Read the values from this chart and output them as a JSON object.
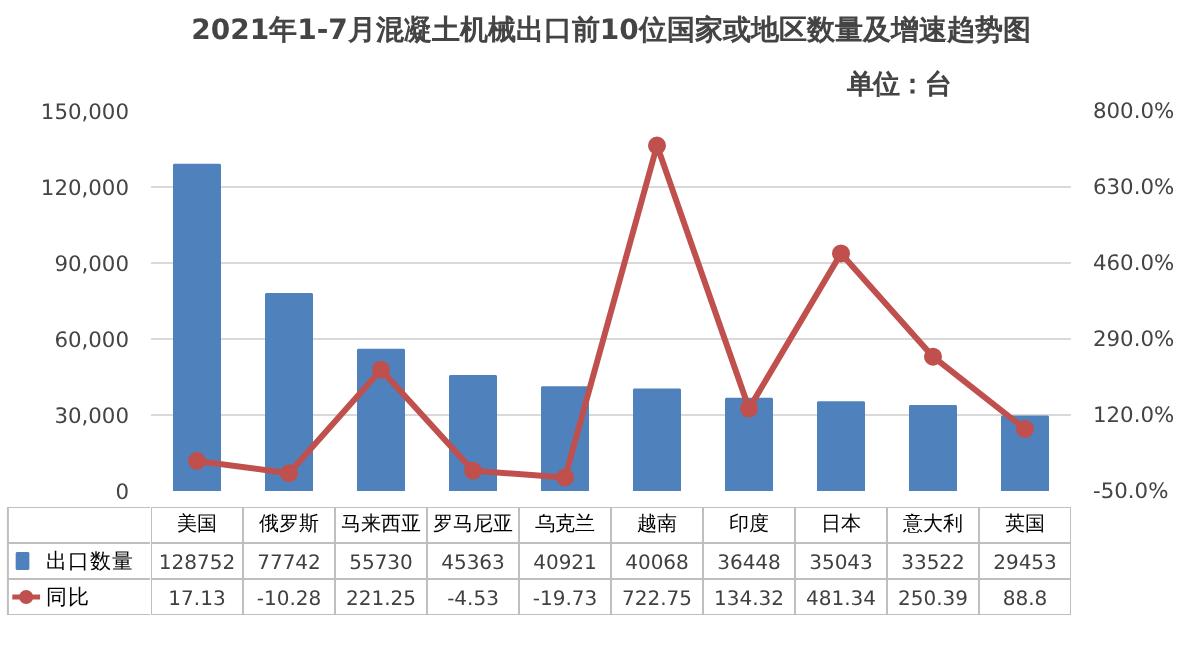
{
  "chart_data": {
    "type": "bar",
    "title": "2021年1-7月混凝土机械出口前10位国家或地区数量及增速趋势图",
    "subtitle": "单位：台",
    "categories": [
      "美国",
      "俄罗斯",
      "马来西亚",
      "罗马尼亚",
      "乌克兰",
      "越南",
      "印度",
      "日本",
      "意大利",
      "英国"
    ],
    "series": [
      {
        "name": "出口数量",
        "color": "#4f81bd",
        "values": [
          128752,
          77742,
          55730,
          45363,
          40921,
          40068,
          36448,
          35043,
          33522,
          29453
        ]
      },
      {
        "name": "同比",
        "type": "line",
        "axis": "y2",
        "color": "#c0504d",
        "marker": "circle",
        "values": [
          17.13,
          -10.28,
          221.25,
          -4.53,
          -19.73,
          722.75,
          134.32,
          481.34,
          250.39,
          88.8
        ]
      }
    ],
    "ylim": [
      0,
      150000
    ],
    "yticks": [
      {
        "value": 0,
        "label": "0"
      },
      {
        "value": 30000,
        "label": "30,000"
      },
      {
        "value": 60000,
        "label": "60,000"
      },
      {
        "value": 90000,
        "label": "90,000"
      },
      {
        "value": 120000,
        "label": "120,000"
      },
      {
        "value": 150000,
        "label": "150,000"
      }
    ],
    "y2lim": [
      -50,
      800
    ],
    "y2ticks": [
      {
        "value": -50,
        "label": "-50.0%"
      },
      {
        "value": 120,
        "label": "120.0%"
      },
      {
        "value": 290,
        "label": "290.0%"
      },
      {
        "value": 460,
        "label": "460.0%"
      },
      {
        "value": 630,
        "label": "630.0%"
      },
      {
        "value": 800,
        "label": "800.0%"
      }
    ],
    "grid": "y",
    "legend": "bottom",
    "data_labels": true
  }
}
